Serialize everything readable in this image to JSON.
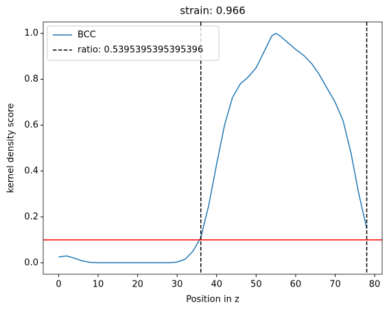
{
  "chart_data": {
    "type": "line",
    "title": "strain: 0.966",
    "x_label": "Position in z",
    "y_label": "kernel density score",
    "xlim": [
      -3.9,
      81.9
    ],
    "ylim": [
      -0.05,
      1.05
    ],
    "xticks": [
      0,
      10,
      20,
      30,
      40,
      50,
      60,
      70,
      80
    ],
    "yticks": [
      {
        "value": 0,
        "label": "0.0"
      },
      0.2,
      0.4,
      0.6,
      0.8,
      {
        "value": 1,
        "label": "1.0"
      }
    ],
    "legend": "upper left",
    "series": [
      {
        "name": "BCC",
        "color": "#1f77b4",
        "x": [
          0,
          2,
          4,
          6,
          8,
          10,
          12,
          14,
          16,
          18,
          20,
          22,
          24,
          26,
          28,
          30,
          32,
          34,
          36,
          38,
          40,
          42,
          44,
          46,
          48,
          50,
          52,
          54,
          55,
          56,
          58,
          60,
          62,
          64,
          66,
          68,
          70,
          72,
          74,
          76,
          78
        ],
        "values": [
          0.025,
          0.03,
          0.02,
          0.008,
          0.002,
          0,
          0,
          0,
          0,
          0,
          0,
          0,
          0,
          0,
          0,
          0.003,
          0.015,
          0.05,
          0.11,
          0.25,
          0.43,
          0.6,
          0.72,
          0.78,
          0.81,
          0.85,
          0.92,
          0.99,
          1.0,
          0.99,
          0.96,
          0.93,
          0.905,
          0.87,
          0.82,
          0.76,
          0.7,
          0.62,
          0.48,
          0.3,
          0.15
        ]
      }
    ],
    "vlines": {
      "name": "ratio: 0.5395395395395396",
      "color": "#000000",
      "values": [
        36,
        78
      ]
    },
    "hline": {
      "value": 0.1,
      "color": "#ff0000"
    }
  }
}
